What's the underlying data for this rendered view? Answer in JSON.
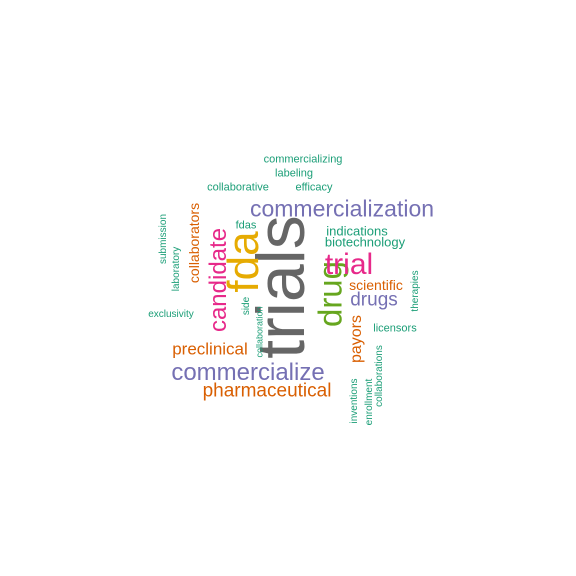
{
  "colors": {
    "teal": "#1b9e77",
    "orange": "#d95f02",
    "purple": "#7570b3",
    "magenta": "#e7298a",
    "green": "#66a61e",
    "gold": "#e6ab02",
    "gray": "#666666"
  },
  "words": {
    "trials": "trials",
    "fda": "fda",
    "commercialization": "commercialization",
    "commercialize": "commercialize",
    "drug": "drug",
    "trial": "trial",
    "candidate": "candidate",
    "pharmaceutical": "pharmaceutical",
    "drugs": "drugs",
    "preclinical": "preclinical",
    "collaborators": "collaborators",
    "payors": "payors",
    "scientific": "scientific",
    "indications": "indications",
    "biotechnology": "biotechnology",
    "commercializing": "commercializing",
    "labeling": "labeling",
    "collaborative": "collaborative",
    "efficacy": "efficacy",
    "fdas": "fdas",
    "submission": "submission",
    "laboratory": "laboratory",
    "exclusivity": "exclusivity",
    "side": "side",
    "collaboration": "collaboration",
    "licensors": "licensors",
    "therapies": "therapies",
    "inventions": "inventions",
    "enrollment": "enrollment",
    "collaborations": "collaborations"
  }
}
